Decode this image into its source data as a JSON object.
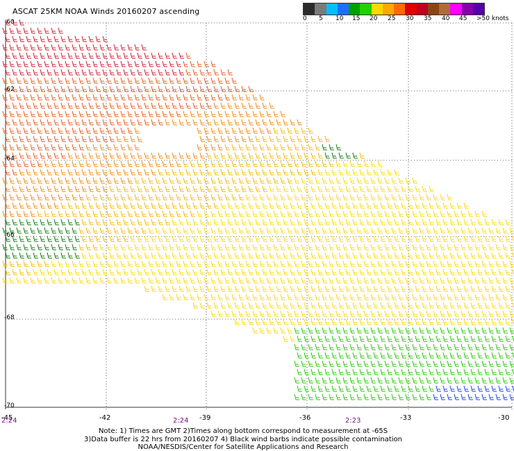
{
  "title": "ASCAT 25KM NOAA Winds 20160207 ascending",
  "legend": {
    "colors": [
      "#2b2b2b",
      "#7a7a7a",
      "#00bfff",
      "#1e6fff",
      "#00a000",
      "#22d000",
      "#ffd800",
      "#ffa800",
      "#ff6a00",
      "#e00000",
      "#c00020",
      "#8b4513",
      "#b06a3a",
      "#ff00ff",
      "#8800aa",
      "#5500aa"
    ],
    "tick_labels": [
      "0",
      "5",
      "10",
      "15",
      "20",
      "25",
      "30",
      "35",
      "40",
      "45",
      ">50 knots"
    ]
  },
  "axes": {
    "lat_labels": [
      "-60",
      "-62",
      "-64",
      "-66",
      "-68",
      "-70"
    ],
    "lon_labels": [
      "-45",
      "-42",
      "-39",
      "-36",
      "-33",
      "-30"
    ],
    "time_labels": [
      "2:24",
      "2:24",
      "2:23"
    ]
  },
  "notes": {
    "line1": "Note: 1) Times are GMT 2)Times along bottom correspond to measurement at -65S",
    "line2": "3)Data buffer is 22 hrs from 20160207 4) Black wind barbs indicate possible contamination",
    "line3": "NOAA/NESDIS/Center for Satellite Applications and Research"
  },
  "style": {
    "time_color": "#7a0f8a",
    "grid_color": "#333333"
  }
}
